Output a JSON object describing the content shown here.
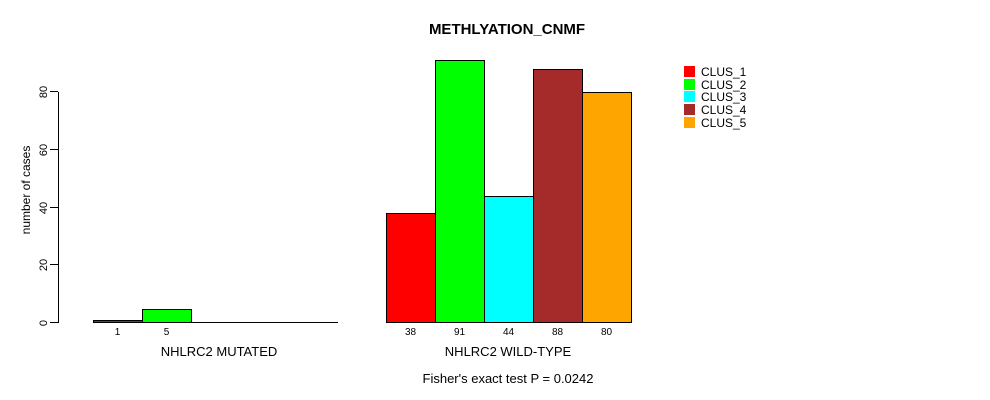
{
  "chart_data": {
    "type": "bar",
    "title": "METHLYATION_CNMF",
    "ylabel": "number of cases",
    "xlabel": "",
    "ylim": [
      0,
      91
    ],
    "yticks": [
      0,
      20,
      40,
      60,
      80
    ],
    "grid": false,
    "legend_position": "right",
    "categories": [
      "CLUS_1",
      "CLUS_2",
      "CLUS_3",
      "CLUS_4",
      "CLUS_5"
    ],
    "colors": [
      "#ff0000",
      "#00ff00",
      "#00ffff",
      "#a52a2a",
      "#ffa500"
    ],
    "groups": [
      {
        "label": "NHLRC2 MUTATED",
        "values": [
          1,
          5,
          null,
          null,
          null
        ]
      },
      {
        "label": "NHLRC2 WILD-TYPE",
        "values": [
          38,
          91,
          44,
          88,
          80
        ]
      }
    ],
    "footnote": "Fisher's exact test P = 0.0242"
  }
}
